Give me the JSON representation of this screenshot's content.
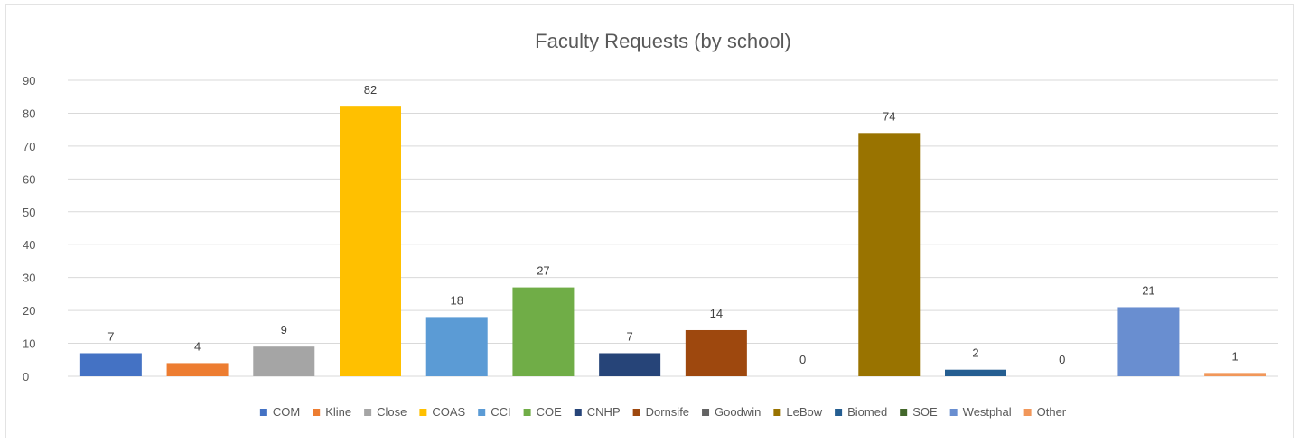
{
  "chart_data": {
    "type": "bar",
    "title": "Faculty Requests (by school)",
    "xlabel": "",
    "ylabel": "",
    "ylim": [
      0,
      90
    ],
    "yticks": [
      0,
      10,
      20,
      30,
      40,
      50,
      60,
      70,
      80,
      90
    ],
    "grid": true,
    "legend_position": "bottom",
    "data_labels": true,
    "categories": [
      "COM",
      "Kline",
      "Close",
      "COAS",
      "CCI",
      "COE",
      "CNHP",
      "Dornsife",
      "Goodwin",
      "LeBow",
      "Biomed",
      "SOE",
      "Westphal",
      "Other"
    ],
    "series": [
      {
        "name": "COM",
        "value": 7,
        "color": "#4472C4"
      },
      {
        "name": "Kline",
        "value": 4,
        "color": "#ED7D31"
      },
      {
        "name": "Close",
        "value": 9,
        "color": "#A5A5A5"
      },
      {
        "name": "COAS",
        "value": 82,
        "color": "#FFC000"
      },
      {
        "name": "CCI",
        "value": 18,
        "color": "#5B9BD5"
      },
      {
        "name": "COE",
        "value": 27,
        "color": "#70AD47"
      },
      {
        "name": "CNHP",
        "value": 7,
        "color": "#264478"
      },
      {
        "name": "Dornsife",
        "value": 14,
        "color": "#9E480E"
      },
      {
        "name": "Goodwin",
        "value": 0,
        "color": "#636363"
      },
      {
        "name": "LeBow",
        "value": 74,
        "color": "#997300"
      },
      {
        "name": "Biomed",
        "value": 2,
        "color": "#255E91"
      },
      {
        "name": "SOE",
        "value": 0,
        "color": "#43682B"
      },
      {
        "name": "Westphal",
        "value": 21,
        "color": "#698ED0"
      },
      {
        "name": "Other",
        "value": 1,
        "color": "#F1975A"
      }
    ]
  }
}
